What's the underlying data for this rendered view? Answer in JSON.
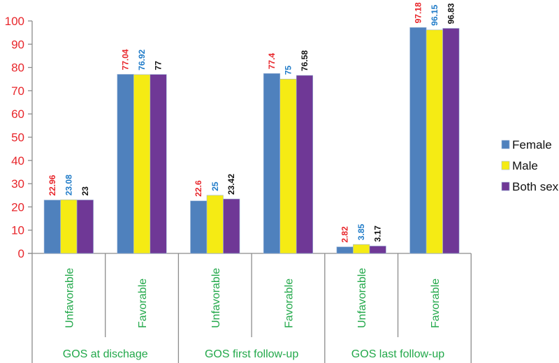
{
  "chart_data": {
    "type": "bar",
    "title": "",
    "xlabel": "",
    "ylabel": "",
    "ylim": [
      0,
      100
    ],
    "yticks": [
      0,
      10,
      20,
      30,
      40,
      50,
      60,
      70,
      80,
      90,
      100
    ],
    "grid": false,
    "legend_position": "right",
    "groups": [
      {
        "label": "GOS at dischage",
        "categories": [
          "Unfavorable",
          "Favorable"
        ]
      },
      {
        "label": "GOS first follow-up",
        "categories": [
          "Unfavorable",
          "Favorable"
        ]
      },
      {
        "label": "GOS last follow-up",
        "categories": [
          "Unfavorable",
          "Favorable"
        ]
      }
    ],
    "categories": [
      "Unfavorable",
      "Favorable",
      "Unfavorable",
      "Favorable",
      "Unfavorable",
      "Favorable"
    ],
    "series": [
      {
        "name": "Female",
        "color": "#4f81bd",
        "label_color": "#e8262b",
        "values": [
          22.96,
          77.04,
          22.6,
          77.4,
          2.82,
          97.18
        ],
        "labels": [
          "22.96",
          "77.04",
          "22.6",
          "77.4",
          "2.82",
          "97.18"
        ]
      },
      {
        "name": "Male",
        "color": "#f5eb14",
        "label_color": "#1f7bc8",
        "values": [
          23.08,
          76.92,
          25,
          75,
          3.85,
          96.15
        ],
        "labels": [
          "23.08",
          "76.92",
          "25",
          "75",
          "3.85",
          "96.15"
        ]
      },
      {
        "name": "Both sex",
        "color": "#6f3896",
        "label_color": "#111111",
        "values": [
          23,
          77,
          23.42,
          76.58,
          3.17,
          96.83
        ],
        "labels": [
          "23",
          "77",
          "23.42",
          "76.58",
          "3.17",
          "96.83"
        ]
      }
    ]
  }
}
